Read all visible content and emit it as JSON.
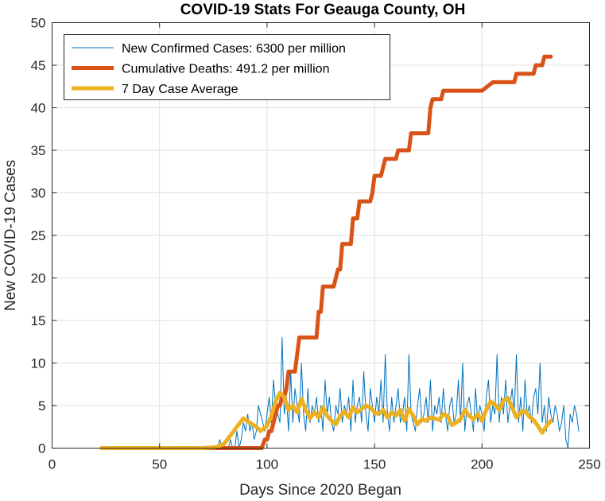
{
  "chart_data": {
    "type": "line",
    "title": "COVID-19 Stats For Geauga County, OH",
    "xlabel": "Days Since 2020 Began",
    "ylabel": "New COVID-19 Cases",
    "xlim": [
      0,
      250
    ],
    "ylim": [
      0,
      50
    ],
    "xticks": [
      0,
      50,
      100,
      150,
      200,
      250
    ],
    "yticks": [
      0,
      5,
      10,
      15,
      20,
      25,
      30,
      35,
      40,
      45,
      50
    ],
    "grid": true,
    "legend_position": "top-left",
    "series": [
      {
        "name": "New Confirmed Cases: 6300 per million",
        "color": "#0072BD",
        "style": "thin",
        "x_start": 23,
        "values": [
          0,
          0,
          0,
          0,
          0,
          0,
          0,
          0,
          0,
          0,
          0,
          0,
          0,
          0,
          0,
          0,
          0,
          0,
          0,
          0,
          0,
          0,
          0,
          0,
          0,
          0,
          0,
          0,
          0,
          0,
          0,
          0,
          0,
          0,
          0,
          0,
          0,
          0,
          0,
          0,
          0,
          0,
          0,
          0,
          0,
          0,
          0,
          0,
          0,
          0,
          0,
          0,
          0,
          0,
          0,
          1,
          0,
          0,
          0,
          0,
          1,
          0,
          0,
          2,
          0,
          1,
          3,
          2,
          4,
          2,
          3,
          1,
          2,
          5,
          4,
          3,
          2,
          4,
          6,
          3,
          8,
          5,
          4,
          3,
          13,
          4,
          6,
          2,
          9,
          3,
          7,
          5,
          3,
          10,
          4,
          2,
          7,
          3,
          5,
          4,
          6,
          3,
          5,
          2,
          8,
          4,
          6,
          3,
          2,
          5,
          4,
          7,
          3,
          5,
          4,
          6,
          2,
          8,
          3,
          5,
          6,
          3,
          9,
          4,
          2,
          7,
          5,
          3,
          6,
          4,
          8,
          3,
          11,
          4,
          2,
          6,
          3,
          5,
          7,
          3,
          4,
          6,
          2,
          11,
          4,
          3,
          2,
          5,
          7,
          3,
          4,
          6,
          3,
          8,
          2,
          5,
          4,
          6,
          3,
          7,
          4,
          2,
          5,
          6,
          3,
          4,
          8,
          3,
          10,
          2,
          5,
          6,
          4,
          2,
          7,
          3,
          5,
          4,
          2,
          6,
          8,
          3,
          5,
          4,
          11,
          3,
          6,
          4,
          8,
          3,
          5,
          7,
          4,
          11,
          3,
          6,
          2,
          8,
          4,
          5,
          3,
          6,
          7,
          4,
          10,
          3,
          5,
          2,
          6,
          4,
          3,
          5,
          4,
          2,
          3,
          5,
          1,
          0,
          4,
          3,
          5,
          4,
          2
        ]
      },
      {
        "name": "Cumulative Deaths: 491.2 per million",
        "color": "#D95319",
        "style": "thick",
        "x": [
          23,
          97,
          97.5,
          99,
          100,
          101,
          102,
          103,
          104,
          105,
          106,
          107,
          108,
          109,
          110,
          111,
          112,
          113,
          114,
          115,
          116,
          117,
          118,
          119,
          120,
          121,
          122,
          123,
          124,
          125,
          126,
          127,
          128,
          129,
          130,
          131,
          132,
          133,
          134,
          135,
          136,
          137,
          138,
          139,
          140,
          141,
          142,
          143,
          144,
          145,
          146,
          147,
          148,
          149,
          150,
          151,
          152,
          153,
          154,
          155,
          156,
          157,
          158,
          159,
          160,
          161,
          162,
          163,
          164,
          165,
          166,
          167,
          168,
          169,
          170,
          171,
          172,
          173,
          174,
          175,
          176,
          177,
          178,
          179,
          180,
          181,
          182,
          183,
          184,
          185,
          190,
          195,
          200,
          205,
          210,
          215,
          216,
          217,
          220,
          224,
          225,
          226,
          227,
          228,
          229,
          230,
          231,
          232
        ],
        "values": [
          0,
          0,
          0,
          1,
          1,
          2,
          2,
          3,
          4,
          5,
          5,
          6,
          6,
          7,
          9,
          9,
          9,
          9,
          11,
          13,
          13,
          13,
          13,
          13,
          13,
          13,
          13,
          13,
          16,
          16,
          19,
          19,
          19,
          19,
          19,
          19,
          20,
          21,
          21,
          24,
          24,
          24,
          24,
          24,
          27,
          27,
          27,
          29,
          29,
          29,
          29,
          29,
          29,
          30,
          32,
          32,
          32,
          32,
          33,
          34,
          34,
          34,
          34,
          34,
          34,
          35,
          35,
          35,
          35,
          35,
          35,
          37,
          37,
          37,
          37,
          37,
          37,
          37,
          37,
          37,
          40,
          41,
          41,
          41,
          41,
          41,
          42,
          42,
          42,
          42,
          42,
          42,
          42,
          43,
          43,
          43,
          44,
          44,
          44,
          44,
          45,
          45,
          45,
          45,
          46,
          46,
          46,
          46
        ]
      },
      {
        "name": "7 Day Case Average",
        "color": "#EDB120",
        "style": "thick",
        "x": [
          23,
          70,
          76,
          80,
          83,
          86,
          89,
          92,
          95,
          97,
          100,
          102,
          104,
          106,
          108,
          110,
          112,
          114,
          116,
          118,
          120,
          122,
          124,
          126,
          128,
          130,
          132,
          134,
          136,
          138,
          140,
          142,
          144,
          146,
          148,
          150,
          152,
          154,
          156,
          158,
          160,
          162,
          164,
          166,
          168,
          170,
          172,
          174,
          176,
          178,
          180,
          182,
          184,
          186,
          188,
          190,
          192,
          194,
          196,
          198,
          200,
          202,
          204,
          206,
          208,
          210,
          212,
          214,
          216,
          218,
          220,
          222,
          224,
          226,
          228,
          230,
          232
        ],
        "values": [
          0,
          0,
          0.1,
          0.5,
          1.5,
          2.5,
          3.5,
          3,
          2.5,
          2,
          2.6,
          3.8,
          5.5,
          6.5,
          6,
          4.5,
          5,
          4.2,
          5.8,
          4.5,
          3.5,
          4.2,
          3.6,
          4.8,
          3.8,
          3.2,
          2.8,
          3.8,
          4.3,
          3.6,
          4.8,
          4.2,
          4.6,
          5,
          4.8,
          4.2,
          4,
          4.5,
          3.6,
          4.2,
          3.8,
          4.5,
          3.2,
          4.6,
          3.8,
          2.8,
          3.4,
          3.2,
          3.6,
          3.5,
          3.3,
          4,
          3.8,
          2.7,
          3,
          3.4,
          4.5,
          3.8,
          3.4,
          4,
          3.2,
          4.5,
          5.5,
          5.1,
          4.5,
          5.6,
          5.9,
          4.8,
          3.6,
          4.2,
          4.4,
          3.7,
          3.3,
          2.6,
          1.8,
          2.6,
          3.2
        ]
      }
    ]
  }
}
